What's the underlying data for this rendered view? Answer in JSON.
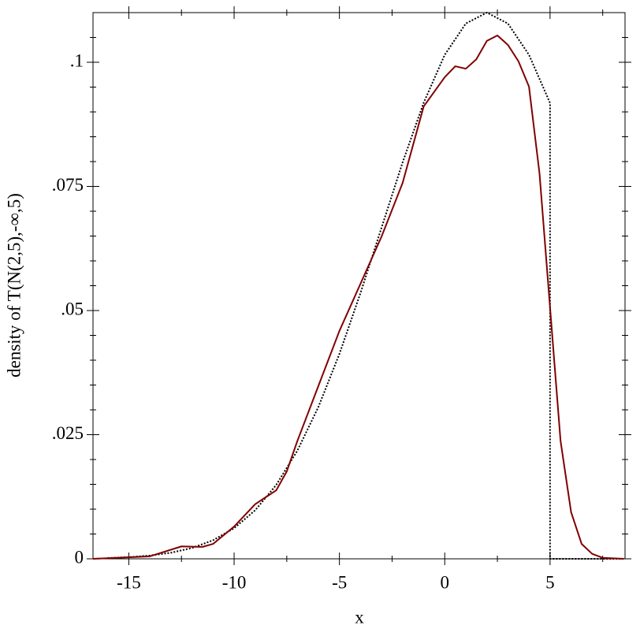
{
  "chart_data": {
    "type": "line",
    "x_label": "x",
    "y_label": "density of T(N(2,5),-∞,5)",
    "xlim": [
      -16.7,
      8.56
    ],
    "ylim": [
      0,
      0.11
    ],
    "xticks": [
      -15,
      -10,
      -5,
      0,
      5
    ],
    "xminorticks": [
      -12.5,
      -7.5,
      -2.5,
      2.5,
      7.5
    ],
    "yticks": [
      0,
      {
        "value": 0.025,
        "label": ".025"
      },
      {
        "value": 0.05,
        "label": ".05"
      },
      {
        "value": 0.075,
        "label": ".075"
      },
      {
        "value": 0.1,
        "label": ".1"
      }
    ],
    "yminorticks": [
      0.005,
      0.01,
      0.015,
      0.02,
      0.03,
      0.035,
      0.04,
      0.045,
      0.055,
      0.06,
      0.065,
      0.07,
      0.08,
      0.085,
      0.09,
      0.095,
      0.105
    ],
    "series": [
      {
        "color": "#000000",
        "style": "dotted",
        "x": [
          -16,
          -15,
          -14,
          -13,
          -12,
          -11,
          -10,
          -9,
          -8,
          -7,
          -6,
          -5,
          -4,
          -3,
          -2,
          -1,
          0,
          1,
          2,
          3,
          4,
          5,
          5,
          8.5
        ],
        "values": [
          0.00017,
          0.00034,
          0.00066,
          0.00122,
          0.00218,
          0.00374,
          0.00617,
          0.00978,
          0.01488,
          0.02176,
          0.03057,
          0.04127,
          0.05353,
          0.06669,
          0.07984,
          0.09185,
          0.1015,
          0.1078,
          0.11,
          0.1078,
          0.1015,
          0.0918,
          0,
          0
        ]
      },
      {
        "color": "#800000",
        "style": "solid",
        "x": [
          -16.7,
          -14,
          -12.5,
          -11.5,
          -11,
          -10,
          -9,
          -8.5,
          -8,
          -7.5,
          -7,
          -6,
          -5,
          -4,
          -3,
          -2,
          -1,
          0,
          0.5,
          1,
          1.5,
          2,
          2.5,
          3,
          3.5,
          4,
          4.5,
          5,
          5.5,
          6,
          6.5,
          7,
          7.5,
          8.5
        ],
        "values": [
          0,
          0.0005,
          0.0025,
          0.0024,
          0.003,
          0.0065,
          0.011,
          0.0124,
          0.0138,
          0.0176,
          0.0237,
          0.0348,
          0.0459,
          0.0554,
          0.0649,
          0.0757,
          0.0911,
          0.097,
          0.0992,
          0.0987,
          0.1006,
          0.1043,
          0.1054,
          0.1035,
          0.1002,
          0.0951,
          0.0776,
          0.0506,
          0.0237,
          0.0094,
          0.003,
          0.001,
          0.0002,
          0
        ]
      }
    ]
  }
}
